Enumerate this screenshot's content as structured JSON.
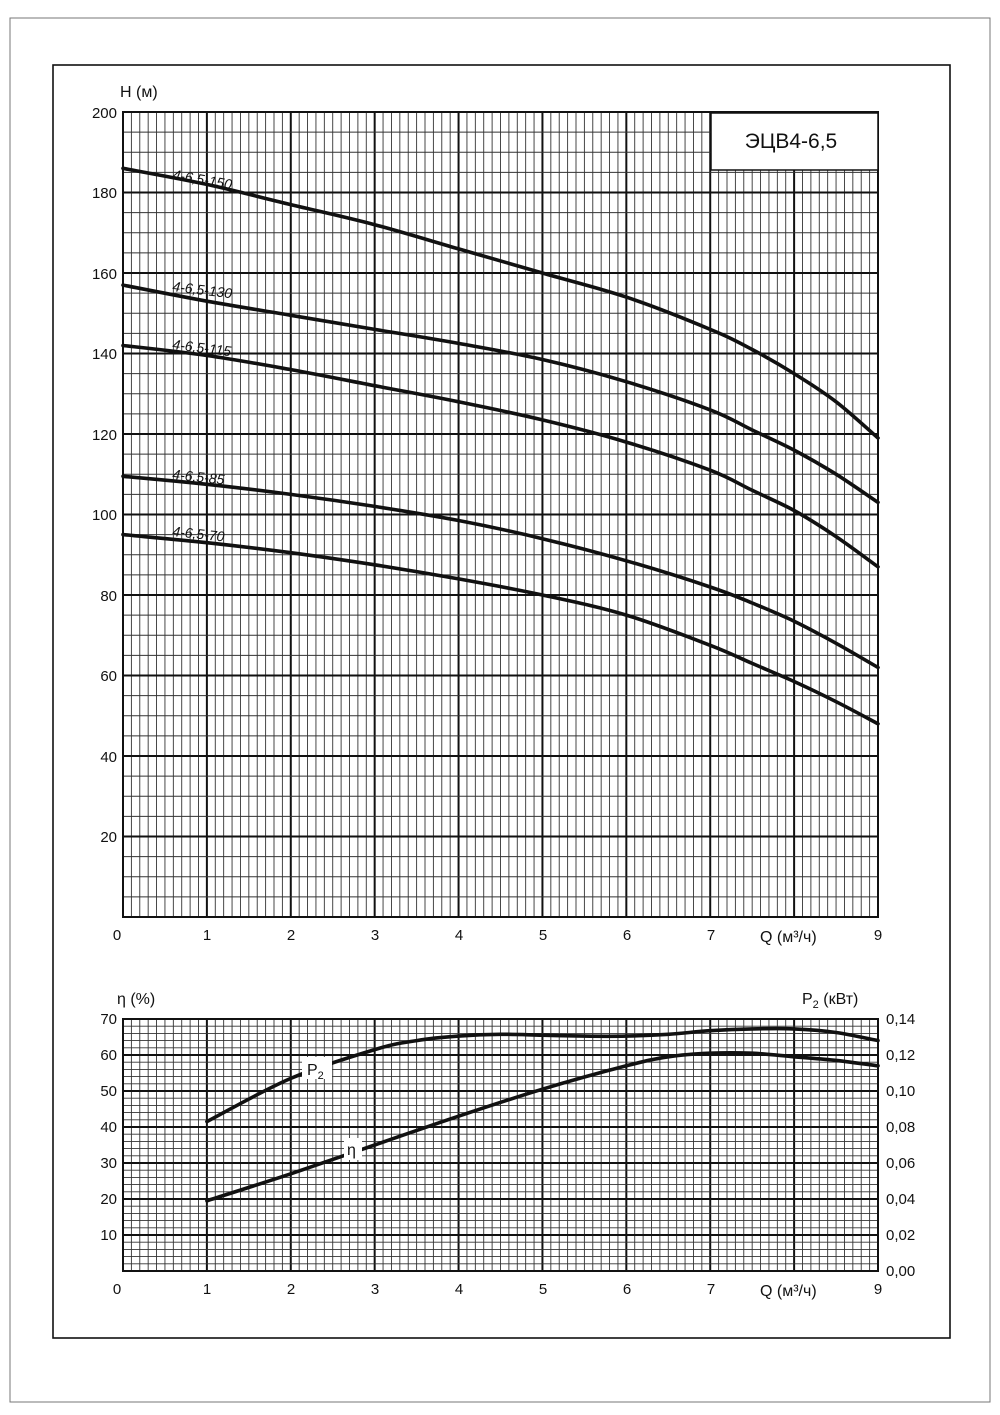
{
  "model_title": "ЭЦВ4-6,5",
  "chart_data": [
    {
      "type": "line",
      "title": "ЭЦВ4-6,5",
      "xlabel": "Q (м³/ч)",
      "ylabel": "H (м)",
      "xlim": [
        0,
        9
      ],
      "ylim": [
        0,
        200
      ],
      "grid": true,
      "x_ticks": [
        "0",
        "1",
        "2",
        "3",
        "4",
        "5",
        "6",
        "7",
        "9"
      ],
      "y_ticks": [
        "20",
        "40",
        "60",
        "80",
        "100",
        "120",
        "140",
        "160",
        "180",
        "200"
      ],
      "series": [
        {
          "name": "4-6,5-150",
          "x": [
            0,
            1,
            2,
            3,
            4,
            5,
            6,
            7,
            7.5,
            8,
            8.5,
            9
          ],
          "y": [
            186,
            182,
            177,
            172,
            166,
            160,
            154,
            146,
            141,
            135,
            128,
            119
          ]
        },
        {
          "name": "4-6,5-130",
          "x": [
            0,
            1,
            2,
            3,
            4,
            5,
            6,
            7,
            7.5,
            8,
            8.5,
            9
          ],
          "y": [
            157,
            153,
            149.5,
            146,
            142.5,
            138.5,
            133,
            126,
            121,
            116,
            110,
            103
          ]
        },
        {
          "name": "4-6,5-115",
          "x": [
            0,
            1,
            2,
            3,
            4,
            5,
            6,
            7,
            7.5,
            8,
            8.5,
            9
          ],
          "y": [
            142,
            139.5,
            136,
            132,
            128,
            123.5,
            118,
            111,
            106,
            101,
            94.5,
            87
          ]
        },
        {
          "name": "4-6,5-85",
          "x": [
            0,
            1,
            2,
            3,
            4,
            5,
            6,
            7,
            7.5,
            8,
            8.5,
            9
          ],
          "y": [
            109.5,
            107.5,
            105,
            102,
            98.5,
            94,
            88.5,
            82,
            78,
            73.5,
            68,
            62
          ]
        },
        {
          "name": "4-6,5-70",
          "x": [
            0,
            1,
            2,
            3,
            4,
            5,
            6,
            7,
            7.5,
            8,
            8.5,
            9
          ],
          "y": [
            95,
            93,
            90.5,
            87.5,
            84,
            80,
            75,
            67.5,
            63,
            58.5,
            53.5,
            48
          ]
        }
      ]
    },
    {
      "type": "line",
      "xlabel": "Q (м³/ч)",
      "ylabel": "η (%)",
      "y2label": "P2 (кВт)",
      "xlim": [
        0,
        9
      ],
      "ylim": [
        0,
        70
      ],
      "y2lim": [
        0,
        0.14
      ],
      "grid": true,
      "x_ticks": [
        "0",
        "1",
        "2",
        "3",
        "4",
        "5",
        "6",
        "7",
        "9"
      ],
      "y_ticks": [
        "10",
        "20",
        "30",
        "40",
        "50",
        "60",
        "70"
      ],
      "y2_ticks": [
        "0,00",
        "0,02",
        "0,04",
        "0,06",
        "0,08",
        "0,10",
        "0,12",
        "0,14"
      ],
      "series": [
        {
          "name": "η",
          "label": "η",
          "axis": "left",
          "x": [
            1,
            2,
            3,
            4,
            5,
            6,
            6.5,
            7,
            7.5,
            8,
            8.5,
            9
          ],
          "y": [
            19.5,
            27,
            35,
            43,
            50.5,
            57,
            59.5,
            60.5,
            60.5,
            59.5,
            58.5,
            57
          ]
        },
        {
          "name": "P2",
          "label": "P2",
          "axis": "right",
          "x": [
            1,
            2,
            3,
            3.5,
            4,
            4.5,
            5,
            5.5,
            6,
            6.5,
            7,
            7.5,
            8,
            8.5,
            9
          ],
          "y": [
            0.083,
            0.107,
            0.123,
            0.128,
            0.1305,
            0.1315,
            0.131,
            0.1305,
            0.1305,
            0.1315,
            0.1335,
            0.1345,
            0.1345,
            0.1325,
            0.128
          ]
        }
      ]
    }
  ],
  "curve_labels": {
    "eta": "η",
    "p2_main": "P",
    "p2_sub": "2"
  },
  "axis_titles": {
    "eta": "η (%)",
    "p2_main": "P",
    "p2_sub": "2",
    "p2_unit": " (кВт)"
  }
}
